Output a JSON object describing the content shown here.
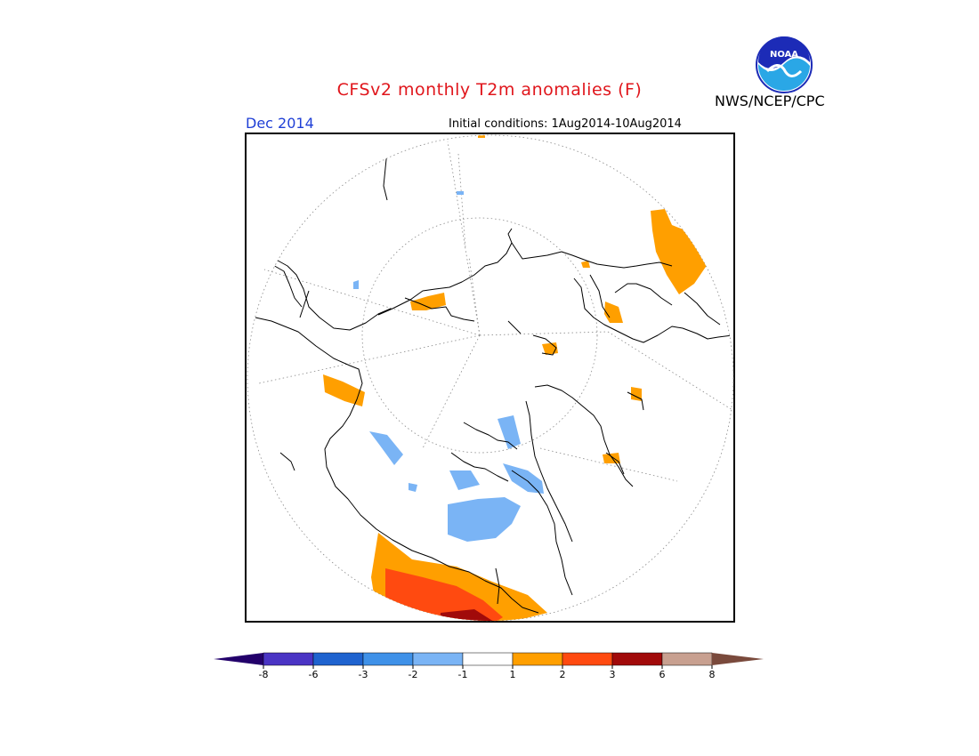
{
  "header": {
    "title": "CFSv2 monthly T2m anomalies (F)",
    "month": "Dec 2014",
    "initial_conditions": "Initial conditions: 1Aug2014-10Aug2014",
    "agency": "NWS/NCEP/CPC",
    "logo_text": "NOAA"
  },
  "map": {
    "projection": "polar-stereographic-north",
    "variable": "T2m anomaly",
    "units": "F"
  },
  "colorbar": {
    "tick_labels": [
      "-8",
      "-6",
      "-3",
      "-2",
      "-1",
      "1",
      "2",
      "3",
      "6",
      "8"
    ],
    "colors": [
      "#4a34c4",
      "#1f63cf",
      "#3f91e8",
      "#7ab4f5",
      "#ffffff",
      "#ff9f00",
      "#ff4a10",
      "#a10a0a",
      "#c8a090"
    ],
    "low_extend_color": "#23006b",
    "high_extend_color": "#7a4a3c"
  }
}
